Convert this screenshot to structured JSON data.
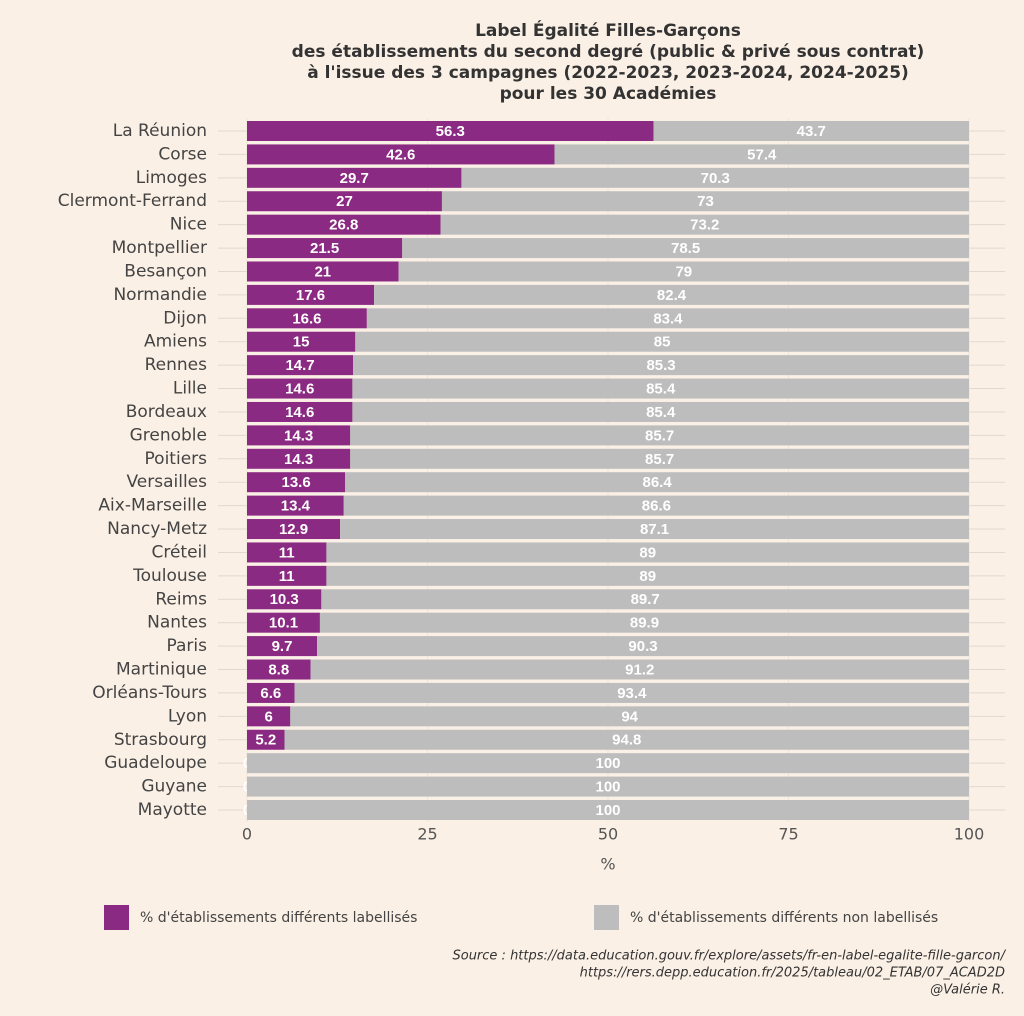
{
  "chart_data": {
    "type": "stacked-barh",
    "title": [
      "Label Égalité Filles-Garçons",
      "des établissements du second degré (public & privé sous contrat)",
      "à l'issue des 3 campagnes (2022-2023, 2023-2024, 2024-2025)",
      "pour les 30 Académies"
    ],
    "xlabel": "%",
    "categories": [
      "La Réunion",
      "Corse",
      "Limoges",
      "Clermont-Ferrand",
      "Nice",
      "Montpellier",
      "Besançon",
      "Normandie",
      "Dijon",
      "Amiens",
      "Rennes",
      "Lille",
      "Bordeaux",
      "Grenoble",
      "Poitiers",
      "Versailles",
      "Aix-Marseille",
      "Nancy-Metz",
      "Créteil",
      "Toulouse",
      "Reims",
      "Nantes",
      "Paris",
      "Martinique",
      "Orléans-Tours",
      "Lyon",
      "Strasbourg",
      "Guadeloupe",
      "Guyane",
      "Mayotte"
    ],
    "series": [
      {
        "name": "% d'établissements différents labellisés",
        "color": "#8b2a82",
        "values": [
          56.3,
          42.6,
          29.7,
          27,
          26.8,
          21.5,
          21,
          17.6,
          16.6,
          15,
          14.7,
          14.6,
          14.6,
          14.3,
          14.3,
          13.6,
          13.4,
          12.9,
          11,
          11,
          10.3,
          10.1,
          9.7,
          8.8,
          6.6,
          6,
          5.2,
          0,
          0,
          0
        ]
      },
      {
        "name": "% d'établissements différents non labellisés",
        "color": "#bdbdbd",
        "values": [
          43.7,
          57.4,
          70.3,
          73,
          73.2,
          78.5,
          79,
          82.4,
          83.4,
          85,
          85.3,
          85.4,
          85.4,
          85.7,
          85.7,
          86.4,
          86.6,
          87.1,
          89,
          89,
          89.7,
          89.9,
          90.3,
          91.2,
          93.4,
          94,
          94.8,
          100,
          100,
          100
        ]
      }
    ],
    "xlim": [
      0,
      100
    ],
    "xticks": [
      0,
      25,
      50,
      75,
      100
    ],
    "grid": true,
    "source": [
      "Source : https://data.education.gouv.fr/explore/assets/fr-en-label-egalite-fille-garcon/",
      "https://rers.depp.education.fr/2025/tableau/02_ETAB/07_ACAD2D",
      "@Valérie R."
    ]
  }
}
